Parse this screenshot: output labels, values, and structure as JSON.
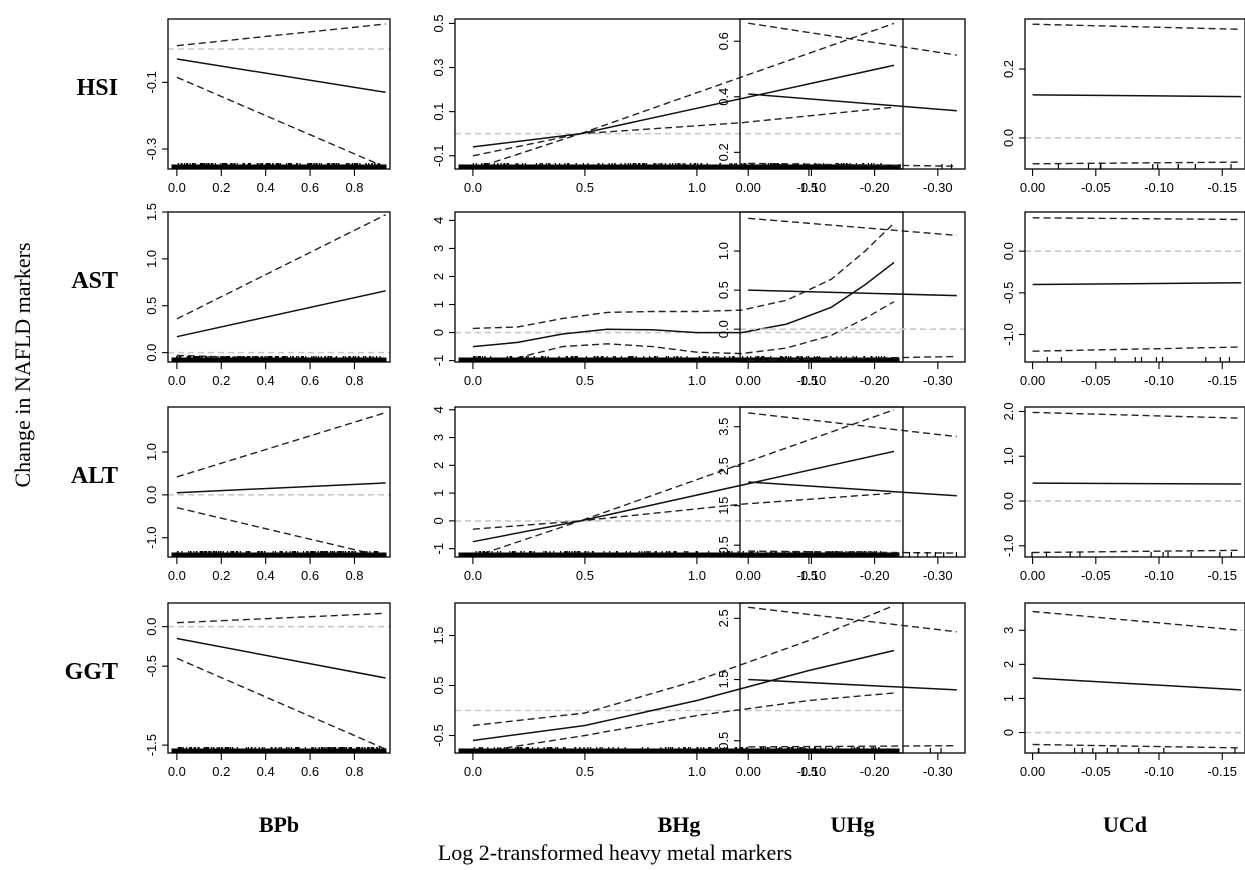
{
  "figure": {
    "ylabel": "Change in NAFLD markers",
    "xlabel": "Log 2-transformed heavy metal markers"
  },
  "chart_data": {
    "type": "line",
    "columns": [
      {
        "label": "BPb",
        "xticks": [
          "0.0",
          "0.2",
          "0.4",
          "0.6",
          "0.8"
        ],
        "xtick_values": [
          0,
          0.2,
          0.4,
          0.6,
          0.8
        ],
        "xlim": [
          -0.04,
          0.96
        ],
        "rug": "dense"
      },
      {
        "label": "BHg",
        "xticks": [
          "0.0",
          "0.5",
          "1.0",
          "1.5"
        ],
        "xtick_values": [
          0,
          0.5,
          1.0,
          1.5
        ],
        "xlim": [
          -0.08,
          1.92
        ],
        "rug": "dense"
      },
      {
        "label": "UHg",
        "xticks": [
          "0.00",
          "-0.10",
          "-0.20",
          "-0.30"
        ],
        "xtick_values": [
          0,
          -0.1,
          -0.2,
          -0.3
        ],
        "xlim": [
          0.013,
          -0.343
        ],
        "rug": "sparse"
      },
      {
        "label": "UCd",
        "xticks": [
          "0.00",
          "-0.05",
          "-0.10",
          "-0.15"
        ],
        "xtick_values": [
          0,
          -0.05,
          -0.1,
          -0.15
        ],
        "xlim": [
          0.006,
          -0.168
        ],
        "rug": "sparse"
      }
    ],
    "rows": [
      {
        "label": "HSI",
        "panels": [
          {
            "ylim": [
              -0.36,
              0.09
            ],
            "yticks": [
              "-0.3",
              "-0.1"
            ],
            "ytick_values": [
              -0.3,
              -0.1
            ],
            "ref": 0,
            "fit": {
              "x": [
                0,
                0.94
              ],
              "y": [
                -0.03,
                -0.13
              ]
            },
            "lower": {
              "x": [
                0,
                0.94
              ],
              "y": [
                -0.085,
                -0.355
              ]
            },
            "upper": {
              "x": [
                0,
                0.94
              ],
              "y": [
                0.01,
                0.075
              ]
            }
          },
          {
            "ylim": [
              -0.16,
              0.52
            ],
            "yticks": [
              "-0.1",
              "0.1",
              "0.3",
              "0.5"
            ],
            "ytick_values": [
              -0.1,
              0.1,
              0.3,
              0.5
            ],
            "ref": 0,
            "fit": {
              "x": [
                0,
                0.48,
                1.88
              ],
              "y": [
                -0.06,
                0.0,
                0.31
              ]
            },
            "lower": {
              "x": [
                0,
                0.48,
                1.2,
                1.88
              ],
              "y": [
                -0.16,
                0.0,
                0.05,
                0.12
              ]
            },
            "upper": {
              "x": [
                0,
                0.48,
                1.88
              ],
              "y": [
                -0.1,
                0.0,
                0.5
              ]
            }
          },
          {
            "ylim": [
              0.14,
              0.68
            ],
            "yticks": [
              "0.2",
              "0.4",
              "0.6"
            ],
            "ytick_values": [
              0.2,
              0.4,
              0.6
            ],
            "ref": 0,
            "fit": {
              "x": [
                0,
                -0.33
              ],
              "y": [
                0.41,
                0.35
              ]
            },
            "lower": {
              "x": [
                0,
                -0.33
              ],
              "y": [
                0.16,
                0.15
              ]
            },
            "upper": {
              "x": [
                0,
                -0.33
              ],
              "y": [
                0.665,
                0.55
              ]
            }
          },
          {
            "ylim": [
              -0.09,
              0.345
            ],
            "yticks": [
              "0.0",
              "0.2"
            ],
            "ytick_values": [
              0,
              0.2
            ],
            "ref": 0,
            "fit": {
              "x": [
                0,
                -0.165
              ],
              "y": [
                0.125,
                0.12
              ]
            },
            "lower": {
              "x": [
                0,
                -0.165
              ],
              "y": [
                -0.075,
                -0.07
              ]
            },
            "upper": {
              "x": [
                0,
                -0.165
              ],
              "y": [
                0.33,
                0.315
              ]
            }
          }
        ]
      },
      {
        "label": "AST",
        "panels": [
          {
            "ylim": [
              -0.1,
              1.5
            ],
            "yticks": [
              "0.0",
              "0.5",
              "1.0",
              "1.5"
            ],
            "ytick_values": [
              0,
              0.5,
              1.0,
              1.5
            ],
            "ref": 0,
            "fit": {
              "x": [
                0,
                0.94
              ],
              "y": [
                0.17,
                0.66
              ]
            },
            "lower": {
              "x": [
                0,
                0.94
              ],
              "y": [
                -0.03,
                -0.1
              ]
            },
            "upper": {
              "x": [
                0,
                0.94
              ],
              "y": [
                0.36,
                1.47
              ]
            }
          },
          {
            "ylim": [
              -1.05,
              4.3
            ],
            "yticks": [
              "-1",
              "0",
              "1",
              "2",
              "3",
              "4"
            ],
            "ytick_values": [
              -1,
              0,
              1,
              2,
              3,
              4
            ],
            "ref": 0,
            "fit": {
              "x": [
                0,
                0.2,
                0.4,
                0.6,
                0.8,
                1.0,
                1.2,
                1.4,
                1.6,
                1.75,
                1.88
              ],
              "y": [
                -0.5,
                -0.35,
                -0.05,
                0.12,
                0.1,
                0.0,
                0.0,
                0.3,
                0.9,
                1.7,
                2.5
              ]
            },
            "lower": {
              "x": [
                0,
                0.2,
                0.4,
                0.6,
                0.8,
                1.0,
                1.2,
                1.4,
                1.6,
                1.75,
                1.88
              ],
              "y": [
                -1.1,
                -0.9,
                -0.5,
                -0.4,
                -0.5,
                -0.7,
                -0.75,
                -0.55,
                -0.1,
                0.5,
                1.1
              ]
            },
            "upper": {
              "x": [
                0,
                0.2,
                0.4,
                0.6,
                0.8,
                1.0,
                1.2,
                1.4,
                1.6,
                1.75,
                1.88
              ],
              "y": [
                0.15,
                0.2,
                0.5,
                0.72,
                0.75,
                0.75,
                0.8,
                1.15,
                1.9,
                2.9,
                3.9
              ]
            }
          },
          {
            "ylim": [
              -0.42,
              1.5
            ],
            "yticks": [
              "0.0",
              "0.5",
              "1.0"
            ],
            "ytick_values": [
              0,
              0.5,
              1.0
            ],
            "ref": 0,
            "fit": {
              "x": [
                0,
                -0.33
              ],
              "y": [
                0.5,
                0.43
              ]
            },
            "lower": {
              "x": [
                0,
                -0.33
              ],
              "y": [
                -0.4,
                -0.35
              ]
            },
            "upper": {
              "x": [
                0,
                -0.33
              ],
              "y": [
                1.42,
                1.2
              ]
            }
          },
          {
            "ylim": [
              -1.33,
              0.47
            ],
            "yticks": [
              "-1.0",
              "-0.5",
              "0.0"
            ],
            "ytick_values": [
              -1.0,
              -0.5,
              0
            ],
            "ref": 0,
            "fit": {
              "x": [
                0,
                -0.165
              ],
              "y": [
                -0.4,
                -0.38
              ]
            },
            "lower": {
              "x": [
                0,
                -0.165
              ],
              "y": [
                -1.2,
                -1.15
              ]
            },
            "upper": {
              "x": [
                0,
                -0.165
              ],
              "y": [
                0.4,
                0.38
              ]
            }
          }
        ]
      },
      {
        "label": "ALT",
        "panels": [
          {
            "ylim": [
              -1.45,
              2.05
            ],
            "yticks": [
              "-1.0",
              "0.0",
              "1.0"
            ],
            "ytick_values": [
              -1.0,
              0,
              1.0
            ],
            "ref": 0,
            "fit": {
              "x": [
                0,
                0.94
              ],
              "y": [
                0.05,
                0.28
              ]
            },
            "lower": {
              "x": [
                0,
                0.94
              ],
              "y": [
                -0.3,
                -1.45
              ]
            },
            "upper": {
              "x": [
                0,
                0.94
              ],
              "y": [
                0.42,
                1.92
              ]
            }
          },
          {
            "ylim": [
              -1.3,
              4.1
            ],
            "yticks": [
              "-1",
              "0",
              "1",
              "2",
              "3",
              "4"
            ],
            "ytick_values": [
              -1,
              0,
              1,
              2,
              3,
              4
            ],
            "ref": 0,
            "fit": {
              "x": [
                0,
                0.48,
                1.88
              ],
              "y": [
                -0.75,
                0.0,
                2.5
              ]
            },
            "lower": {
              "x": [
                0,
                0.48,
                1.2,
                1.88
              ],
              "y": [
                -1.3,
                0.0,
                0.6,
                1.0
              ]
            },
            "upper": {
              "x": [
                0,
                0.48,
                1.88
              ],
              "y": [
                -0.3,
                0.0,
                4.0
              ]
            }
          },
          {
            "ylim": [
              0.2,
              4.0
            ],
            "yticks": [
              "0.5",
              "1.5",
              "2.5",
              "3.5"
            ],
            "ytick_values": [
              0.5,
              1.5,
              2.5,
              3.5
            ],
            "ref": 0,
            "fit": {
              "x": [
                0,
                -0.33
              ],
              "y": [
                2.1,
                1.75
              ]
            },
            "lower": {
              "x": [
                0,
                -0.33
              ],
              "y": [
                0.35,
                0.3
              ]
            },
            "upper": {
              "x": [
                0,
                -0.33
              ],
              "y": [
                3.85,
                3.25
              ]
            }
          },
          {
            "ylim": [
              -1.25,
              2.1
            ],
            "yticks": [
              "-1.0",
              "0.0",
              "1.0",
              "2.0"
            ],
            "ytick_values": [
              -1.0,
              0,
              1.0,
              2.0
            ],
            "ref": 0,
            "fit": {
              "x": [
                0,
                -0.165
              ],
              "y": [
                0.4,
                0.38
              ]
            },
            "lower": {
              "x": [
                0,
                -0.165
              ],
              "y": [
                -1.15,
                -1.1
              ]
            },
            "upper": {
              "x": [
                0,
                -0.165
              ],
              "y": [
                1.98,
                1.85
              ]
            }
          }
        ]
      },
      {
        "label": "GGT",
        "panels": [
          {
            "ylim": [
              -1.6,
              0.3
            ],
            "yticks": [
              "-1.5",
              "-0.5",
              "0.0"
            ],
            "ytick_values": [
              -1.5,
              -0.5,
              0
            ],
            "ref": 0,
            "fit": {
              "x": [
                0,
                0.94
              ],
              "y": [
                -0.15,
                -0.65
              ]
            },
            "lower": {
              "x": [
                0,
                0.94
              ],
              "y": [
                -0.4,
                -1.55
              ]
            },
            "upper": {
              "x": [
                0,
                0.94
              ],
              "y": [
                0.05,
                0.17
              ]
            }
          },
          {
            "ylim": [
              -0.85,
              2.15
            ],
            "yticks": [
              "-0.5",
              "0.5",
              "1.5"
            ],
            "ytick_values": [
              -0.5,
              0.5,
              1.5
            ],
            "ref": 0,
            "fit": {
              "x": [
                0,
                0.5,
                1.0,
                1.5,
                1.88
              ],
              "y": [
                -0.6,
                -0.3,
                0.2,
                0.8,
                1.2
              ]
            },
            "lower": {
              "x": [
                0,
                0.5,
                1.0,
                1.5,
                1.88
              ],
              "y": [
                -0.85,
                -0.5,
                -0.1,
                0.2,
                0.35
              ]
            },
            "upper": {
              "x": [
                0,
                0.5,
                1.0,
                1.5,
                1.88
              ],
              "y": [
                -0.3,
                -0.05,
                0.6,
                1.4,
                2.1
              ]
            }
          },
          {
            "ylim": [
              0.3,
              2.75
            ],
            "yticks": [
              "0.5",
              "1.5",
              "2.5"
            ],
            "ytick_values": [
              0.5,
              1.5,
              2.5
            ],
            "ref": 0,
            "fit": {
              "x": [
                0,
                -0.33
              ],
              "y": [
                1.5,
                1.33
              ]
            },
            "lower": {
              "x": [
                0,
                -0.33
              ],
              "y": [
                0.4,
                0.42
              ]
            },
            "upper": {
              "x": [
                0,
                -0.33
              ],
              "y": [
                2.68,
                2.28
              ]
            }
          },
          {
            "ylim": [
              -0.6,
              3.8
            ],
            "yticks": [
              "0",
              "1",
              "2",
              "3"
            ],
            "ytick_values": [
              0,
              1,
              2,
              3
            ],
            "ref": 0,
            "fit": {
              "x": [
                0,
                -0.165
              ],
              "y": [
                1.6,
                1.25
              ]
            },
            "lower": {
              "x": [
                0,
                -0.165
              ],
              "y": [
                -0.35,
                -0.45
              ]
            },
            "upper": {
              "x": [
                0,
                -0.165
              ],
              "y": [
                3.55,
                3.0
              ]
            }
          }
        ]
      }
    ]
  }
}
